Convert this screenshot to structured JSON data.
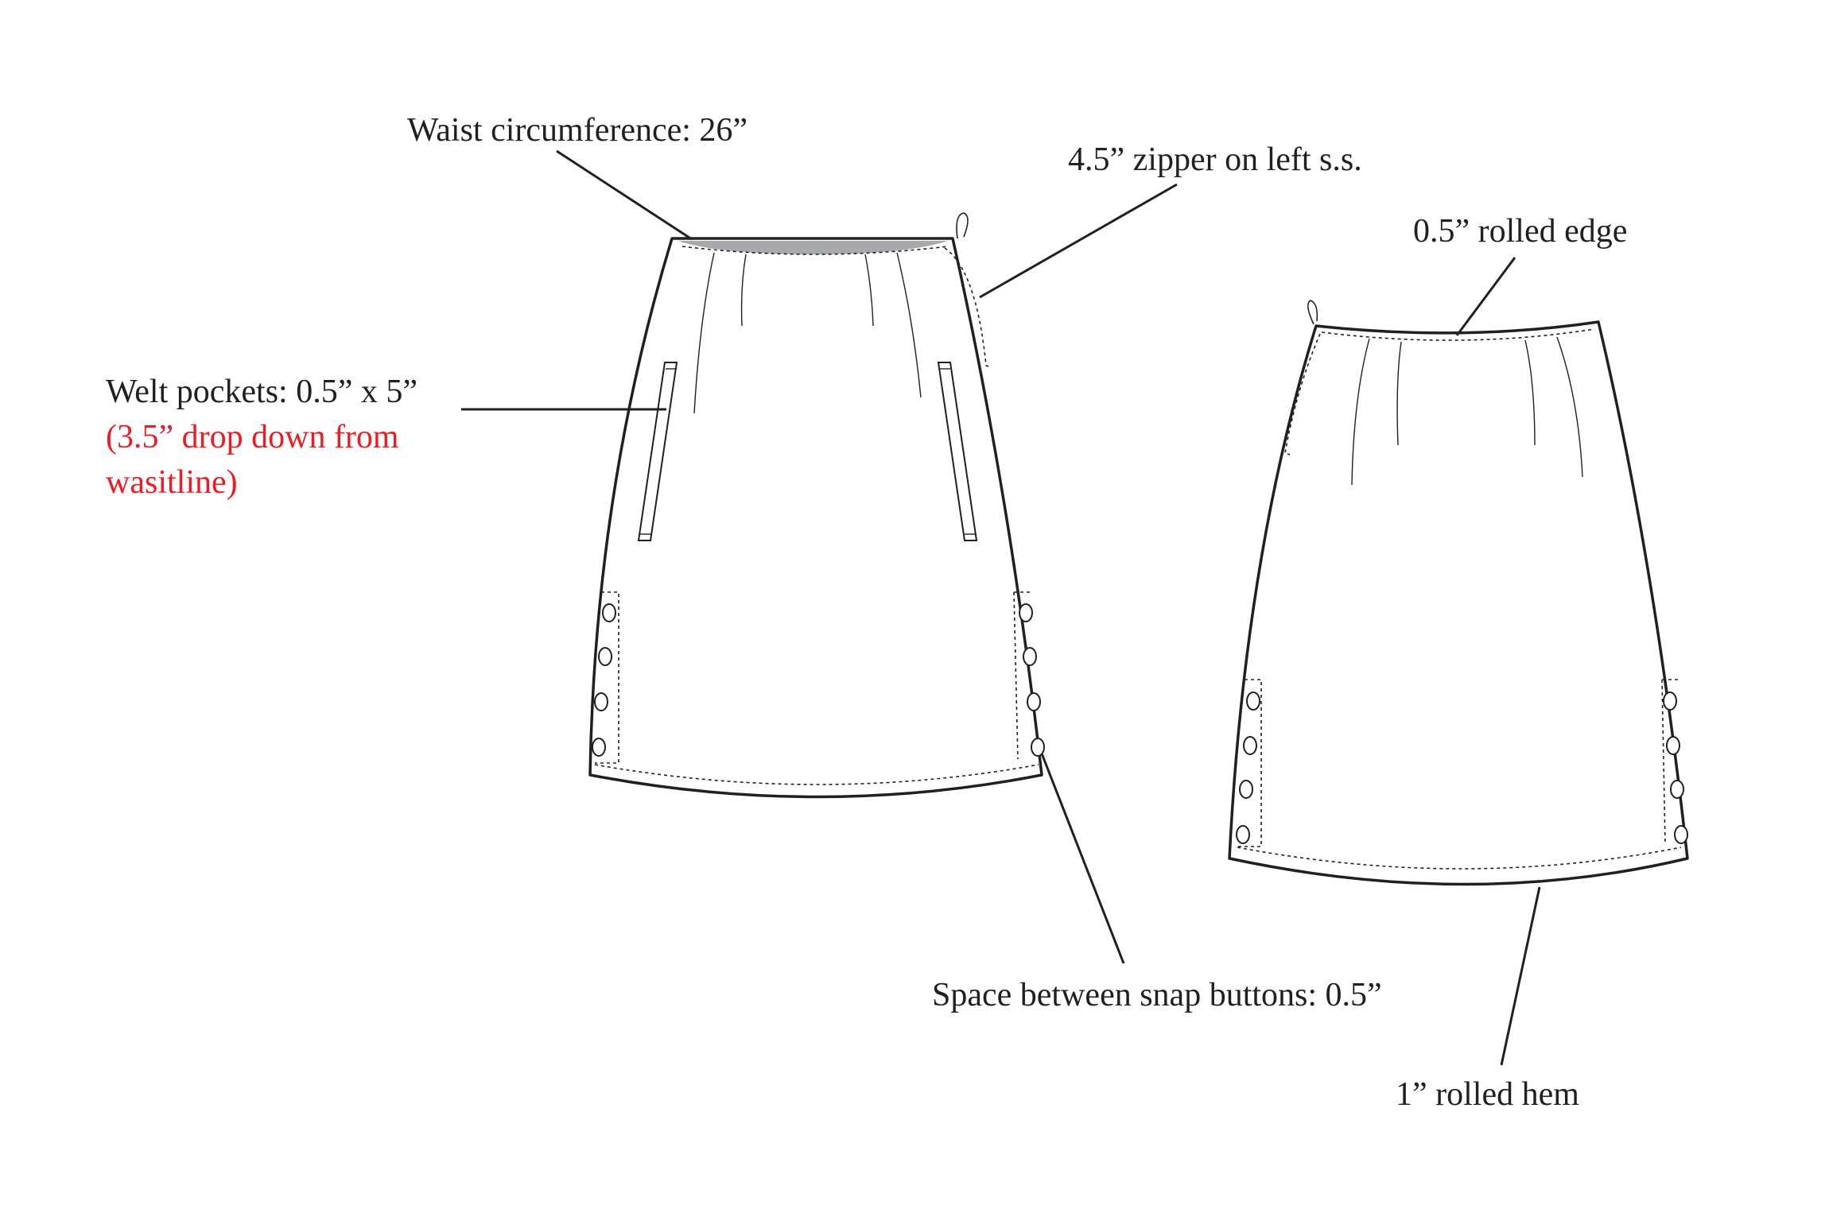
{
  "labels": {
    "waist": "Waist circumference: 26”",
    "zipper": "4.5” zipper on left s.s.",
    "rolled_edge": "0.5” rolled edge",
    "welt": "Welt pockets: 0.5” x 5”",
    "welt_note_line1": "(3.5” drop down from",
    "welt_note_line2": "wasitline)",
    "snap_space": "Space between snap buttons: 0.5”",
    "hem": "1” rolled hem"
  },
  "colors": {
    "text": "#231f20",
    "note_red": "#ed1c24",
    "waistband_shade": "#a7a9ac"
  }
}
